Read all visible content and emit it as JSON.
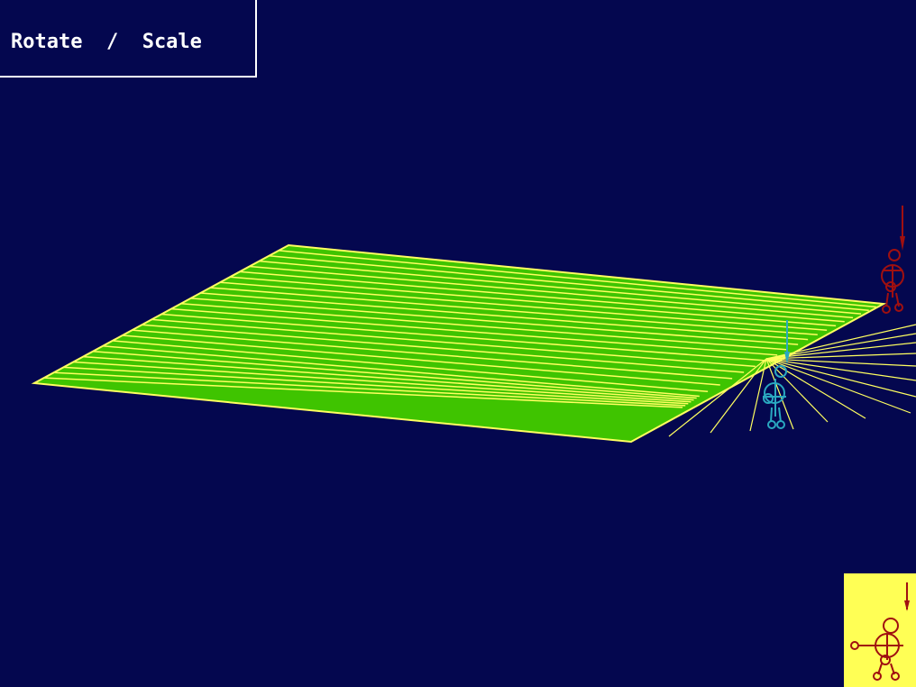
{
  "window": {
    "mode_label": "Rotate  /  Scale"
  },
  "colors": {
    "background": "#04074f",
    "plane_fill": "#3fc400",
    "plane_lines": "#ffff60",
    "frame": "#ffffff",
    "figure_red": "#a01010",
    "figure_cyan": "#2aa8c0",
    "preview_bg": "#ffff55"
  },
  "scene": {
    "object": "mesh-plane",
    "figures": [
      "red-stick-figure",
      "cyan-stick-figure"
    ]
  }
}
